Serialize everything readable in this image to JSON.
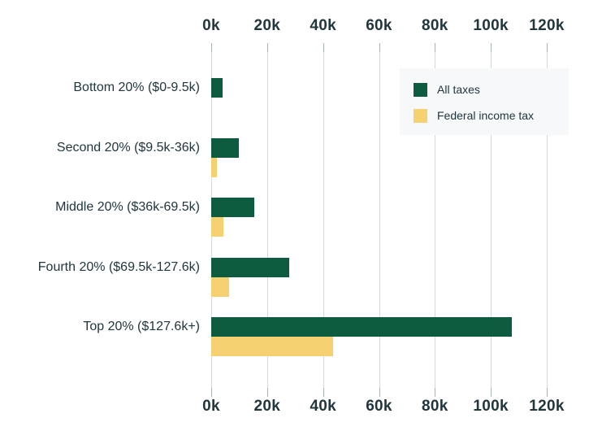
{
  "chart_data": {
    "type": "bar",
    "orientation": "horizontal",
    "title": "",
    "xlabel": "",
    "ylabel": "",
    "categories": [
      "Bottom 20% ($0-9.5k)",
      "Second 20% ($9.5k-36k)",
      "Middle 20% ($36k-69.5k)",
      "Fourth 20% ($69.5k-127.6k)",
      "Top 20% ($127.6k+)"
    ],
    "series": [
      {
        "name": "All taxes",
        "color": "#0e5c40",
        "values": [
          4,
          10,
          15.5,
          28,
          107.5
        ]
      },
      {
        "name": "Federal income tax",
        "color": "#f5d172",
        "values": [
          0,
          2,
          4.5,
          6.5,
          43.5
        ]
      }
    ],
    "x_axis": {
      "unit": "k",
      "ticks": [
        0,
        20,
        40,
        60,
        80,
        100,
        120
      ],
      "tick_labels": [
        "0k",
        "20k",
        "40k",
        "60k",
        "80k",
        "100k",
        "120k"
      ],
      "range": [
        0,
        120
      ],
      "shown_on": "top and bottom"
    },
    "grid": "vertical gridlines on",
    "legend": {
      "position": "top-right",
      "background": "#f7f8f9",
      "entries": [
        "All taxes",
        "Federal income tax"
      ]
    },
    "colors": {
      "all_taxes": "#0e5c40",
      "federal_income_tax": "#f5d172",
      "text": "#21363d",
      "gridline": "#d6d9d9",
      "tick": "#a9b2b3",
      "background": "#ffffff"
    }
  }
}
